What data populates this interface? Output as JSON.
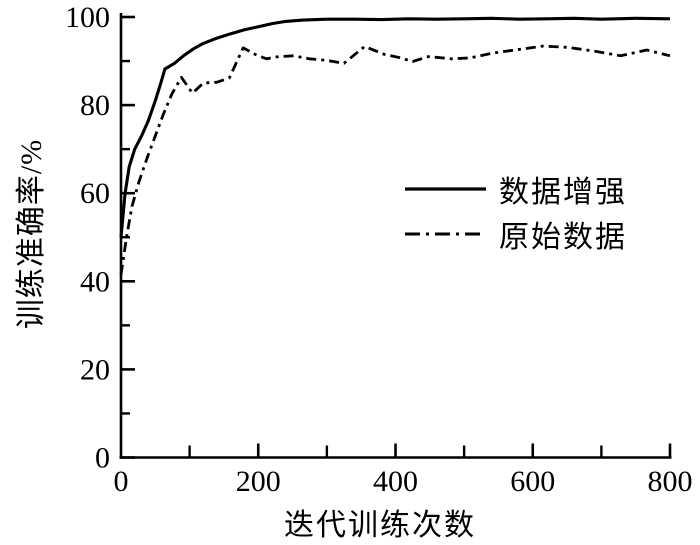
{
  "figure": {
    "background": "#ffffff",
    "ink_color": "#000000"
  },
  "chart_data": {
    "type": "line",
    "title": "",
    "xlabel": "迭代训练次数",
    "ylabel": "训练准确率/%",
    "xlim": [
      0,
      800
    ],
    "ylim": [
      0,
      100
    ],
    "x_ticks": [
      0,
      200,
      400,
      600,
      800
    ],
    "x_minor_ticks": [
      100,
      300,
      500,
      700
    ],
    "y_ticks": [
      0,
      20,
      40,
      60,
      80,
      100
    ],
    "y_minor_ticks": [
      10,
      30,
      50,
      70,
      90
    ],
    "grid": false,
    "legend_position": "center-right",
    "line_color": "#000000",
    "series": [
      {
        "name": "数据增强",
        "style": "solid",
        "points": [
          [
            0,
            50
          ],
          [
            6,
            60
          ],
          [
            12,
            66
          ],
          [
            20,
            70
          ],
          [
            30,
            73
          ],
          [
            40,
            76.5
          ],
          [
            50,
            81
          ],
          [
            58,
            85
          ],
          [
            64,
            88.2
          ],
          [
            78,
            89.5
          ],
          [
            92,
            91.3
          ],
          [
            106,
            92.8
          ],
          [
            120,
            94
          ],
          [
            140,
            95.2
          ],
          [
            160,
            96.2
          ],
          [
            180,
            97.1
          ],
          [
            200,
            97.8
          ],
          [
            220,
            98.5
          ],
          [
            240,
            99
          ],
          [
            265,
            99.3
          ],
          [
            300,
            99.5
          ],
          [
            340,
            99.5
          ],
          [
            380,
            99.4
          ],
          [
            420,
            99.6
          ],
          [
            460,
            99.5
          ],
          [
            500,
            99.6
          ],
          [
            540,
            99.7
          ],
          [
            580,
            99.5
          ],
          [
            620,
            99.6
          ],
          [
            660,
            99.7
          ],
          [
            700,
            99.5
          ],
          [
            750,
            99.7
          ],
          [
            800,
            99.6
          ]
        ]
      },
      {
        "name": "原始数据",
        "style": "dashdot",
        "points": [
          [
            0,
            41.5
          ],
          [
            8,
            50
          ],
          [
            16,
            57
          ],
          [
            26,
            62.5
          ],
          [
            38,
            68
          ],
          [
            50,
            73
          ],
          [
            62,
            78
          ],
          [
            74,
            82.5
          ],
          [
            88,
            86.3
          ],
          [
            104,
            82.7
          ],
          [
            120,
            85
          ],
          [
            140,
            85.2
          ],
          [
            158,
            86.2
          ],
          [
            178,
            93
          ],
          [
            198,
            91.3
          ],
          [
            212,
            90.5
          ],
          [
            230,
            91
          ],
          [
            252,
            91.2
          ],
          [
            274,
            90.5
          ],
          [
            298,
            90.2
          ],
          [
            325,
            89.5
          ],
          [
            355,
            93.3
          ],
          [
            384,
            91.5
          ],
          [
            405,
            90.8
          ],
          [
            425,
            89.9
          ],
          [
            448,
            91.0
          ],
          [
            482,
            90.5
          ],
          [
            508,
            90.7
          ],
          [
            542,
            91.8
          ],
          [
            578,
            92.6
          ],
          [
            615,
            93.4
          ],
          [
            652,
            93.1
          ],
          [
            692,
            92.2
          ],
          [
            728,
            91.2
          ],
          [
            766,
            92.5
          ],
          [
            800,
            91.2
          ]
        ]
      }
    ]
  },
  "legend": {
    "items": [
      {
        "label": "数据增强",
        "style": "solid"
      },
      {
        "label": "原始数据",
        "style": "dashdot"
      }
    ]
  }
}
